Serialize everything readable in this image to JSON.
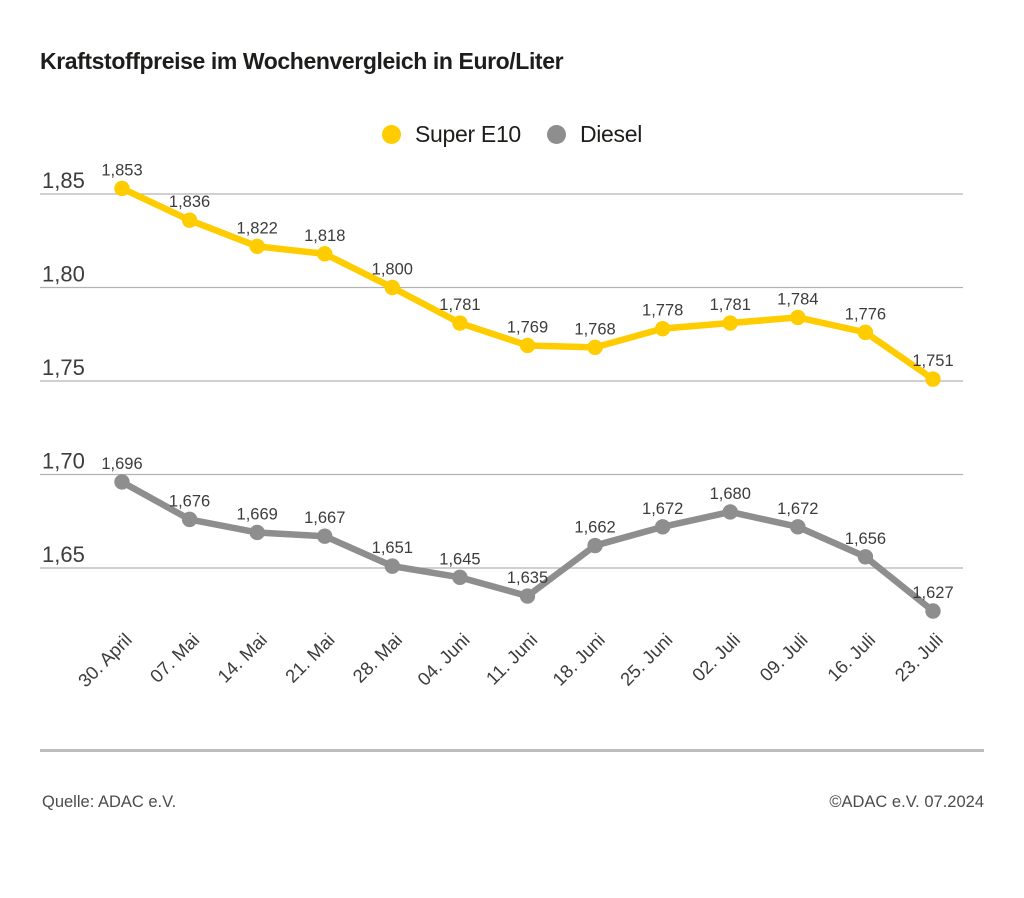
{
  "title": "Kraftstoffpreise im Wochenvergleich in Euro/Liter",
  "legend": {
    "items": [
      {
        "label": "Super E10",
        "color": "#FFCC00"
      },
      {
        "label": "Diesel",
        "color": "#8E8E8E"
      }
    ]
  },
  "footer": {
    "source": "Quelle: ADAC e.V.",
    "copyright": "©ADAC e.V. 07.2024"
  },
  "chart_data": {
    "type": "line",
    "title": "Kraftstoffpreise im Wochenvergleich in Euro/Liter",
    "unit": "Euro/Liter",
    "categories": [
      "30. April",
      "07. Mai",
      "14. Mai",
      "21. Mai",
      "28. Mai",
      "04. Juni",
      "11. Juni",
      "18. Juni",
      "25. Juni",
      "02. Juli",
      "09. Juli",
      "16. Juli",
      "23. Juli"
    ],
    "series": [
      {
        "name": "Super E10",
        "color": "#FFCC00",
        "values": [
          1.853,
          1.836,
          1.822,
          1.818,
          1.8,
          1.781,
          1.769,
          1.768,
          1.778,
          1.781,
          1.784,
          1.776,
          1.751
        ],
        "point_labels": [
          "1,853",
          "1,836",
          "1,822",
          "1,818",
          "1,800",
          "1,781",
          "1,769",
          "1,768",
          "1,778",
          "1,781",
          "1,784",
          "1,776",
          "1,751"
        ]
      },
      {
        "name": "Diesel",
        "color": "#8E8E8E",
        "values": [
          1.696,
          1.676,
          1.669,
          1.667,
          1.651,
          1.645,
          1.635,
          1.662,
          1.672,
          1.68,
          1.672,
          1.656,
          1.627
        ],
        "point_labels": [
          "1,696",
          "1,676",
          "1,669",
          "1,667",
          "1,651",
          "1,645",
          "1,635",
          "1,662",
          "1,672",
          "1,680",
          "1,672",
          "1,656",
          "1,627"
        ]
      }
    ],
    "y_ticks": [
      {
        "value": 1.85,
        "label": "1,85"
      },
      {
        "value": 1.8,
        "label": "1,80"
      },
      {
        "value": 1.75,
        "label": "1,75"
      },
      {
        "value": 1.7,
        "label": "1,70"
      },
      {
        "value": 1.65,
        "label": "1,65"
      }
    ],
    "ylim": [
      1.615,
      1.87
    ],
    "grid": true,
    "legend_position": "top-center",
    "point_labels_visible": true,
    "decimal_separator": ","
  },
  "colors": {
    "grid_line": "#b3b3b3",
    "axis_text": "#3c3c3c",
    "point_label_text": "#3c3c3c",
    "divider": "#bdbdbd"
  }
}
